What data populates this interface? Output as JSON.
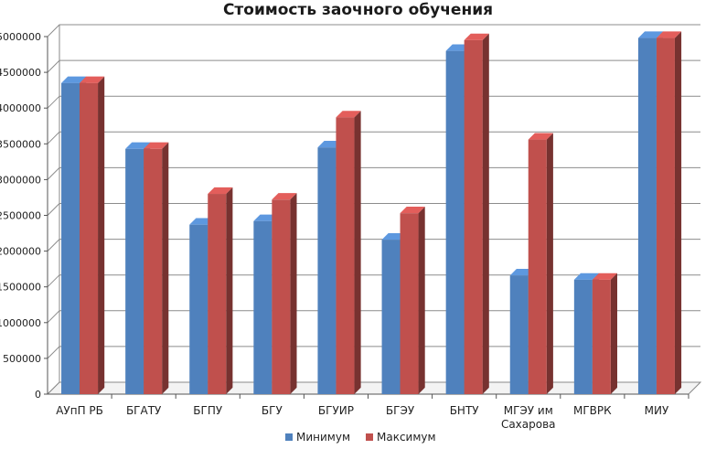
{
  "chart_data": {
    "type": "bar",
    "title": "Стоимость заочного обучения",
    "xlabel": "",
    "ylabel": "",
    "ylim": [
      0,
      5000000
    ],
    "yticks": [
      0,
      500000,
      1000000,
      1500000,
      2000000,
      2500000,
      3000000,
      3500000,
      4000000,
      4500000,
      5000000
    ],
    "grid": true,
    "legend_position": "bottom",
    "three_d": true,
    "categories": [
      [
        "АУпП РБ"
      ],
      [
        "БГАТУ"
      ],
      [
        "БГПУ"
      ],
      [
        "БГУ"
      ],
      [
        "БГУИР"
      ],
      [
        "БГЭУ"
      ],
      [
        "БНТУ"
      ],
      [
        "МГЭУ им",
        "Сахарова"
      ],
      [
        "МГВРК"
      ],
      [
        "МИУ"
      ]
    ],
    "series": [
      {
        "name": "Минимум",
        "color": "#4f81bd",
        "values": [
          4350000,
          3430000,
          2370000,
          2420000,
          3450000,
          2160000,
          4800000,
          1660000,
          1600000,
          4980000
        ]
      },
      {
        "name": "Максимум",
        "color": "#c0504d",
        "values": [
          4350000,
          3430000,
          2800000,
          2720000,
          3870000,
          2530000,
          4950000,
          3560000,
          1600000,
          4980000
        ]
      }
    ]
  }
}
